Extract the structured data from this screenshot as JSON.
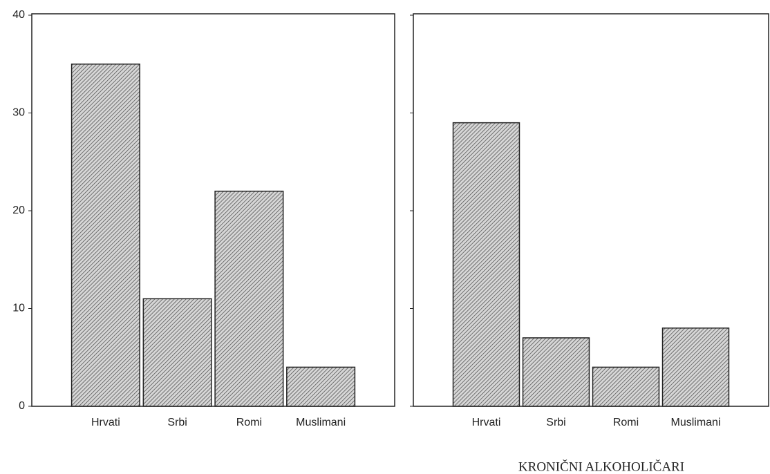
{
  "chart_data": [
    {
      "type": "bar",
      "categories": [
        "Hrvati",
        "Srbi",
        "Romi",
        "Muslimani"
      ],
      "values": [
        35,
        11,
        22,
        4
      ],
      "color": "#9a9a9a",
      "ylim": [
        0,
        40
      ],
      "yticks": [
        0,
        10,
        20,
        30,
        40
      ],
      "show_tick_labels": true
    },
    {
      "type": "bar",
      "title": "KRONIČNI ALKOHOLIČARI",
      "categories": [
        "Hrvati",
        "Srbi",
        "Romi",
        "Muslimani"
      ],
      "values": [
        29,
        7,
        4,
        8
      ],
      "color": "#9a9a9a",
      "ylim": [
        0,
        40
      ],
      "yticks": [
        0,
        10,
        20,
        30,
        40
      ],
      "show_tick_labels": false
    }
  ]
}
